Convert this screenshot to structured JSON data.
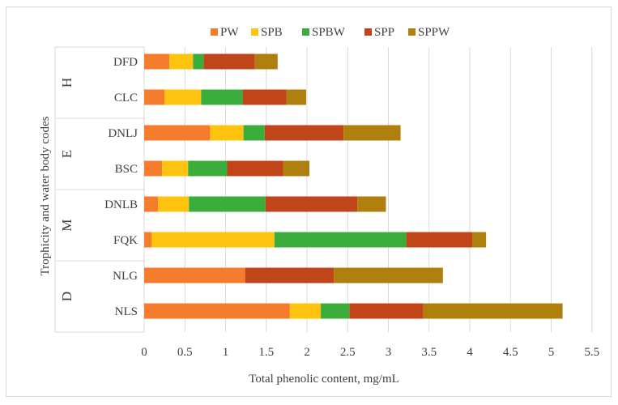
{
  "chart_data": {
    "type": "bar",
    "orientation": "horizontal",
    "stacked": true,
    "title": "",
    "xlabel": "Total phenolic content, mg/mL",
    "ylabel": "Trophicity and water body codes",
    "xlim": [
      0,
      5.5
    ],
    "x_ticks": [
      "0",
      "0.5",
      "1",
      "1.5",
      "2",
      "2.5",
      "3",
      "3.5",
      "4",
      "4.5",
      "5",
      "5.5"
    ],
    "grid": "vertical",
    "legend_position": "top",
    "groups": [
      {
        "label": "H",
        "categories": [
          "DFD",
          "CLC"
        ]
      },
      {
        "label": "E",
        "categories": [
          "DNLJ",
          "BSC"
        ]
      },
      {
        "label": "M",
        "categories": [
          "DNLB",
          "FQK"
        ]
      },
      {
        "label": "D",
        "categories": [
          "NLG",
          "NLS"
        ]
      }
    ],
    "categories": [
      "DFD",
      "CLC",
      "DNLJ",
      "BSC",
      "DNLB",
      "FQK",
      "NLG",
      "NLS"
    ],
    "series": [
      {
        "name": "PW",
        "color": "#f47c2c",
        "values": [
          0.31,
          0.25,
          0.81,
          0.22,
          0.17,
          0.09,
          1.24,
          1.79
        ]
      },
      {
        "name": "SPB",
        "color": "#fdc30f",
        "values": [
          0.29,
          0.45,
          0.41,
          0.32,
          0.38,
          1.51,
          0.0,
          0.38
        ]
      },
      {
        "name": "SPBW",
        "color": "#3aad3d",
        "values": [
          0.13,
          0.51,
          0.26,
          0.48,
          0.94,
          1.62,
          0.0,
          0.35
        ]
      },
      {
        "name": "SPP",
        "color": "#c0461a",
        "values": [
          0.63,
          0.54,
          0.97,
          0.69,
          1.13,
          0.81,
          1.09,
          0.91
        ]
      },
      {
        "name": "SPPW",
        "color": "#b0800f",
        "values": [
          0.28,
          0.24,
          0.7,
          0.32,
          0.35,
          0.17,
          1.34,
          1.71
        ]
      }
    ]
  }
}
